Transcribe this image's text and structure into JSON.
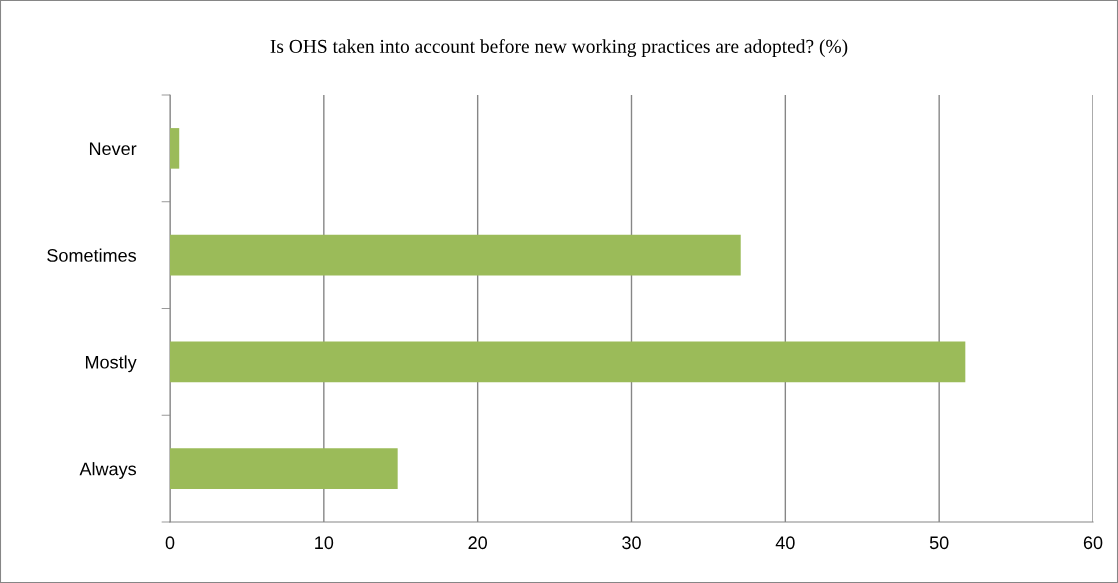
{
  "chart_data": {
    "type": "bar",
    "orientation": "horizontal",
    "title": "Is OHS taken into account before new working practices are adopted? (%)",
    "categories": [
      "Never",
      "Sometimes",
      "Mostly",
      "Always"
    ],
    "values": [
      0.6,
      37.1,
      51.7,
      14.8
    ],
    "color": "#9bbb59",
    "xlim": [
      0,
      60
    ],
    "xticks": [
      0,
      10,
      20,
      30,
      40,
      50,
      60
    ],
    "grid": "x",
    "legend": false
  }
}
